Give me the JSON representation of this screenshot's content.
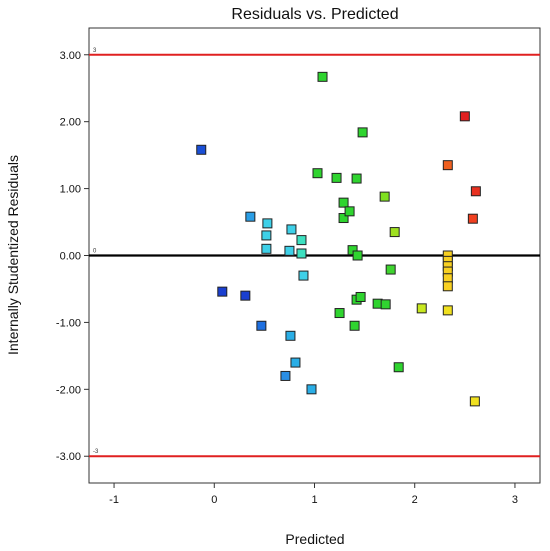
{
  "chart_data": {
    "type": "scatter",
    "title": "Residuals vs. Predicted",
    "xlabel": "Predicted",
    "ylabel": "Internally Studentized Residuals",
    "xlim": [
      -1.25,
      3.25
    ],
    "ylim": [
      -3.4,
      3.4
    ],
    "x_ticks": [
      {
        "value": -1,
        "label": "-1"
      },
      {
        "value": 0,
        "label": "0"
      },
      {
        "value": 1,
        "label": "1"
      },
      {
        "value": 2,
        "label": "2"
      },
      {
        "value": 3,
        "label": "3"
      }
    ],
    "y_ticks": [
      {
        "value": 3,
        "label": "3.00"
      },
      {
        "value": 2,
        "label": "2.00"
      },
      {
        "value": 1,
        "label": "1.00"
      },
      {
        "value": 0,
        "label": "0.00"
      },
      {
        "value": -1,
        "label": "-1.00"
      },
      {
        "value": -2,
        "label": "-2.00"
      },
      {
        "value": -3,
        "label": "-3.00"
      }
    ],
    "reference_lines": [
      {
        "value": 3,
        "label": "3",
        "color": "#e02020"
      },
      {
        "value": 0,
        "label": "0",
        "color": "#000000"
      },
      {
        "value": -3,
        "label": "-3",
        "color": "#e02020"
      }
    ],
    "points": [
      {
        "x": -0.13,
        "y": 1.58,
        "color": "#1a4fd6"
      },
      {
        "x": 0.08,
        "y": -0.54,
        "color": "#1a3fd0"
      },
      {
        "x": 0.31,
        "y": -0.6,
        "color": "#1a3fd0"
      },
      {
        "x": 0.36,
        "y": 0.58,
        "color": "#2a9ee6"
      },
      {
        "x": 0.47,
        "y": -1.05,
        "color": "#1e6fe0"
      },
      {
        "x": 0.52,
        "y": 0.3,
        "color": "#3ed0e8"
      },
      {
        "x": 0.53,
        "y": 0.48,
        "color": "#3ed0e8"
      },
      {
        "x": 0.52,
        "y": 0.1,
        "color": "#3ed0e8"
      },
      {
        "x": 0.71,
        "y": -1.8,
        "color": "#2a8ee4"
      },
      {
        "x": 0.76,
        "y": -1.2,
        "color": "#2aaee6"
      },
      {
        "x": 0.77,
        "y": 0.39,
        "color": "#3ed0e8"
      },
      {
        "x": 0.75,
        "y": 0.07,
        "color": "#3ed0e8"
      },
      {
        "x": 0.81,
        "y": -1.6,
        "color": "#2aaee6"
      },
      {
        "x": 0.87,
        "y": 0.23,
        "color": "#3de0c0"
      },
      {
        "x": 0.87,
        "y": 0.03,
        "color": "#3de0c0"
      },
      {
        "x": 0.89,
        "y": -0.3,
        "color": "#3ed0e8"
      },
      {
        "x": 0.97,
        "y": -2.0,
        "color": "#2aaee6"
      },
      {
        "x": 1.03,
        "y": 1.23,
        "color": "#2fd42f"
      },
      {
        "x": 1.08,
        "y": 2.67,
        "color": "#2fd42f"
      },
      {
        "x": 1.22,
        "y": 1.16,
        "color": "#2fd42f"
      },
      {
        "x": 1.25,
        "y": -0.86,
        "color": "#2fd42f"
      },
      {
        "x": 1.29,
        "y": 0.79,
        "color": "#2fd42f"
      },
      {
        "x": 1.29,
        "y": 0.56,
        "color": "#2fd42f"
      },
      {
        "x": 1.35,
        "y": 0.66,
        "color": "#2fd42f"
      },
      {
        "x": 1.38,
        "y": 0.08,
        "color": "#2fd42f"
      },
      {
        "x": 1.4,
        "y": -1.05,
        "color": "#2fd42f"
      },
      {
        "x": 1.42,
        "y": 1.15,
        "color": "#2fd42f"
      },
      {
        "x": 1.42,
        "y": -0.66,
        "color": "#2fd42f"
      },
      {
        "x": 1.43,
        "y": 0.0,
        "color": "#2fd42f"
      },
      {
        "x": 1.46,
        "y": -0.62,
        "color": "#2fd42f"
      },
      {
        "x": 1.48,
        "y": 1.84,
        "color": "#2fd42f"
      },
      {
        "x": 1.63,
        "y": -0.72,
        "color": "#2fd42f"
      },
      {
        "x": 1.7,
        "y": 0.88,
        "color": "#7fe020"
      },
      {
        "x": 1.71,
        "y": -0.73,
        "color": "#2fd42f"
      },
      {
        "x": 1.76,
        "y": -0.21,
        "color": "#3fd42f"
      },
      {
        "x": 1.8,
        "y": 0.35,
        "color": "#9fe020"
      },
      {
        "x": 1.84,
        "y": -1.67,
        "color": "#2fd42f"
      },
      {
        "x": 2.07,
        "y": -0.79,
        "color": "#c8e820"
      },
      {
        "x": 2.33,
        "y": 1.35,
        "color": "#f06020"
      },
      {
        "x": 2.33,
        "y": 0.0,
        "color": "#f8d020"
      },
      {
        "x": 2.33,
        "y": -0.08,
        "color": "#f8d020"
      },
      {
        "x": 2.33,
        "y": -0.16,
        "color": "#f8d020"
      },
      {
        "x": 2.33,
        "y": -0.24,
        "color": "#f8d020"
      },
      {
        "x": 2.33,
        "y": -0.34,
        "color": "#f8d020"
      },
      {
        "x": 2.33,
        "y": -0.46,
        "color": "#f8d020"
      },
      {
        "x": 2.33,
        "y": -0.82,
        "color": "#f0e020"
      },
      {
        "x": 2.5,
        "y": 2.08,
        "color": "#e02020"
      },
      {
        "x": 2.58,
        "y": 0.55,
        "color": "#f04020"
      },
      {
        "x": 2.61,
        "y": 0.96,
        "color": "#e83020"
      },
      {
        "x": 2.6,
        "y": -2.18,
        "color": "#f0e020"
      }
    ]
  }
}
